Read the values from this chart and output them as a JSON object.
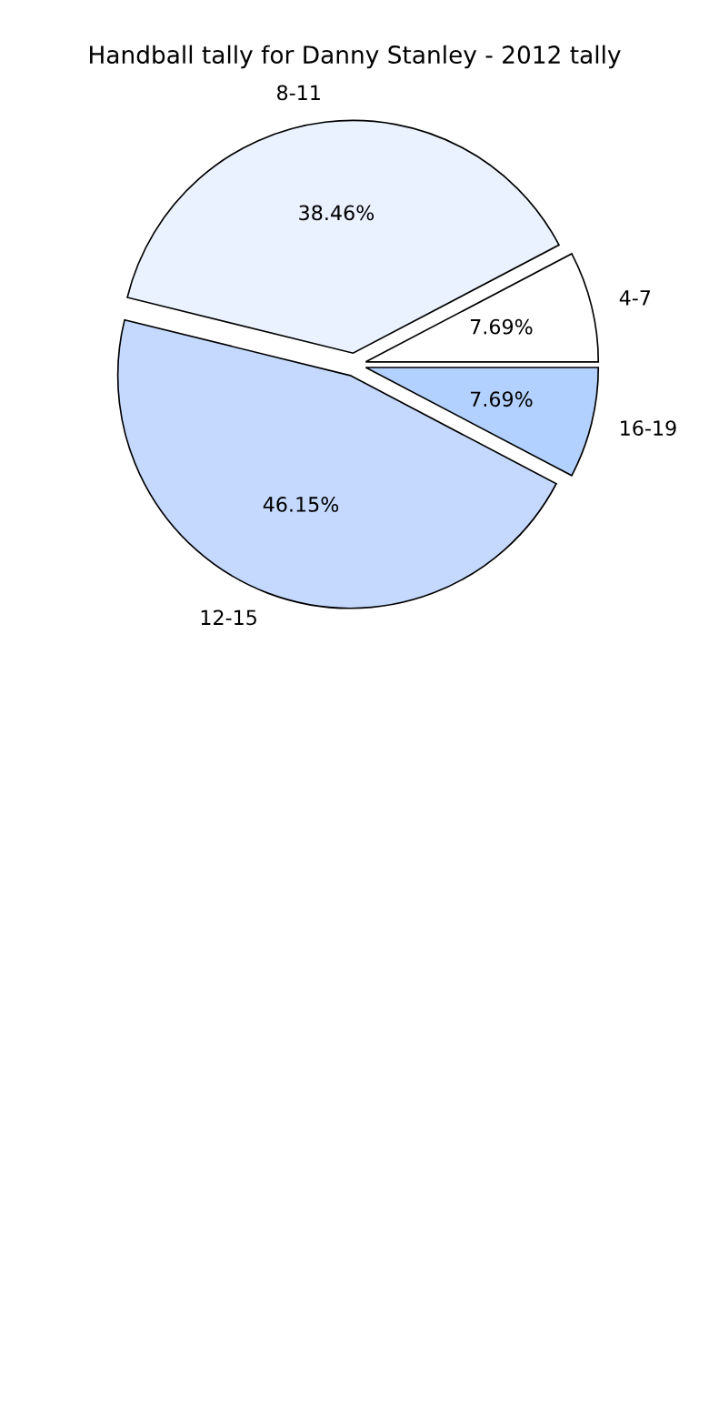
{
  "chart_data": {
    "type": "pie",
    "title": "Handball tally for Danny Stanley - 2012 tally",
    "categories": [
      "4-7",
      "8-11",
      "12-15",
      "16-19"
    ],
    "values": [
      7.69,
      38.46,
      46.15,
      7.69
    ],
    "value_labels": [
      "7.69%",
      "38.46%",
      "46.15%",
      "7.69%"
    ],
    "colors": [
      "#ffffff",
      "#eaf1ff",
      "#c5d9ff",
      "#b3d1ff"
    ],
    "legend": false
  }
}
